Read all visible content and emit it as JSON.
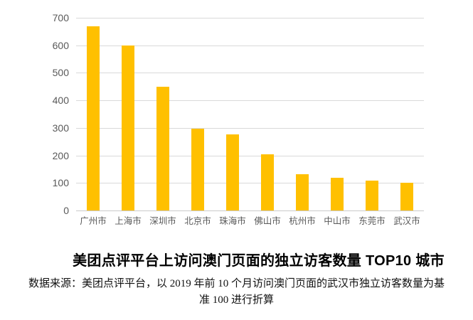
{
  "chart_data": {
    "type": "bar",
    "title": "美团点评平台上访问澳门页面的独立访客数量 TOP10 城市",
    "categories": [
      "广州市",
      "上海市",
      "深圳市",
      "北京市",
      "珠海市",
      "佛山市",
      "杭州市",
      "中山市",
      "东莞市",
      "武汉市"
    ],
    "values": [
      670,
      600,
      450,
      297,
      276,
      205,
      133,
      119,
      109,
      100
    ],
    "xlabel": "",
    "ylabel": "",
    "ylim": [
      0,
      700
    ],
    "yticks": [
      0,
      100,
      200,
      300,
      400,
      500,
      600,
      700
    ],
    "grid": true,
    "legend": false,
    "bar_color": "#FFC000",
    "gridline_color": "#d9d9d9",
    "axis_text_color": "#595959",
    "source_note": "数据来源：美团点评平台，以 2019 年前 10 个月访问澳门页面的武汉市独立访客数量为基准 100 进行折算",
    "source_note_lines": [
      "数据来源：美团点评平台，以 2019 年前 10 个月访问澳门页面的武汉市独立访客数量为基",
      "准 100 进行折算"
    ]
  }
}
